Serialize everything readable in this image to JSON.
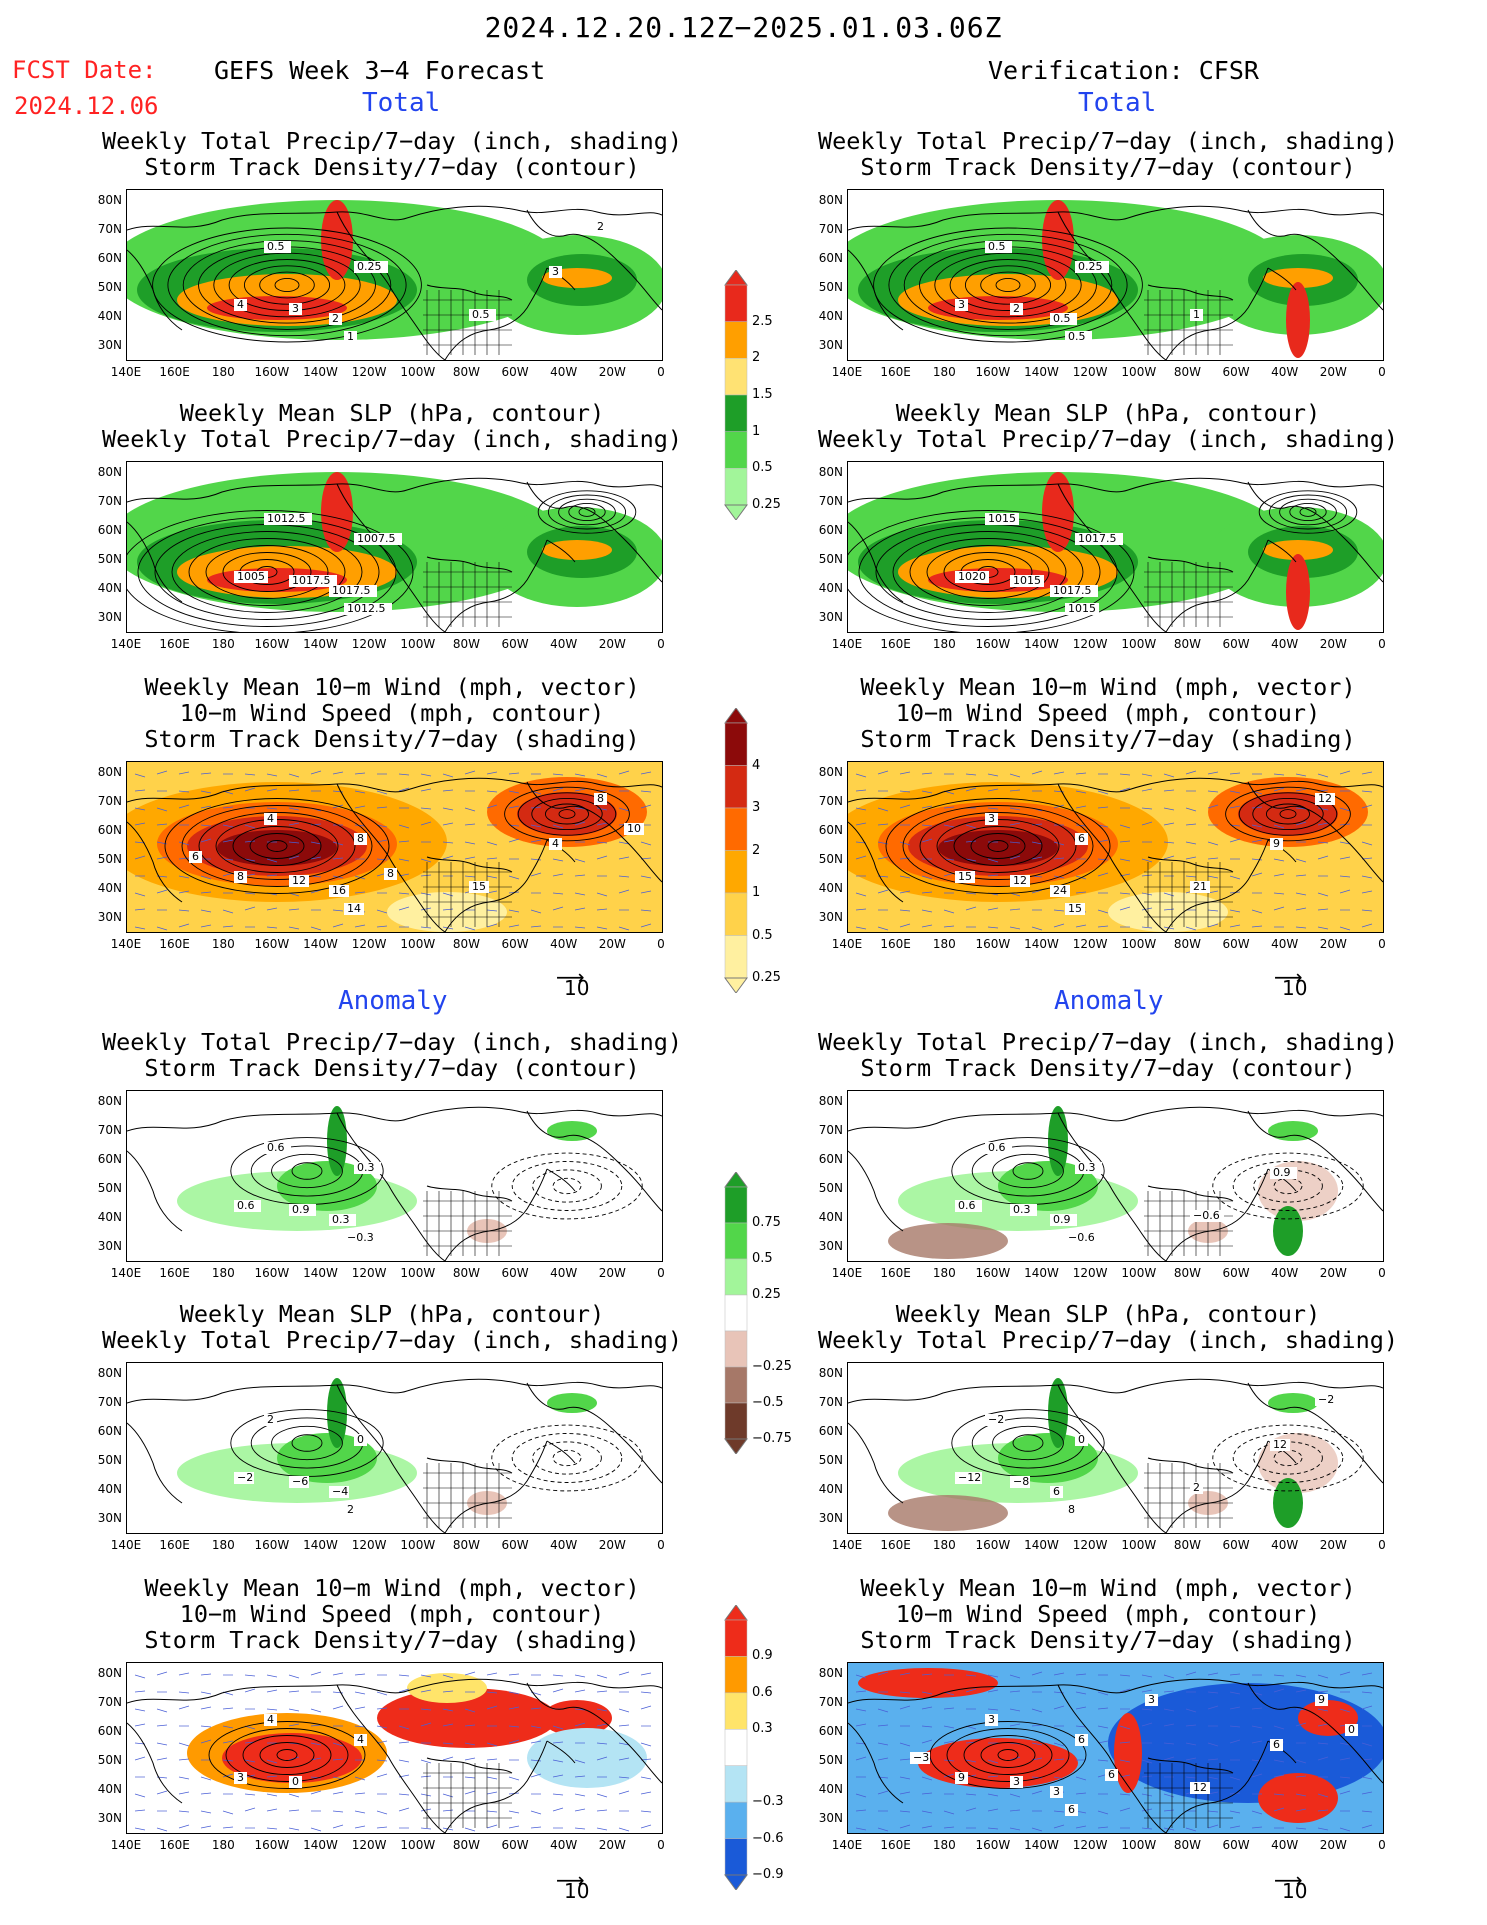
{
  "date_range": "2024.12.20.12Z−2025.01.03.06Z",
  "fcst_label": "FCST Date:",
  "fcst_date": "2024.12.06",
  "left_header": "GEFS Week 3−4 Forecast",
  "right_header": "Verification: CFSR",
  "section_total": "Total",
  "section_anomaly": "Anomaly",
  "titles": {
    "precip_storm": [
      "Weekly Total Precip/7−day (inch, shading)",
      "Storm Track Density/7−day (contour)"
    ],
    "slp_precip": [
      "Weekly Mean SLP (hPa, contour)",
      "Weekly Total Precip/7−day (inch, shading)"
    ],
    "wind_storm": [
      "Weekly Mean 10−m Wind (mph, vector)",
      "10−m Wind Speed (mph, contour)",
      "Storm Track Density/7−day (shading)"
    ]
  },
  "lat_labels": [
    "80N",
    "70N",
    "60N",
    "50N",
    "40N",
    "30N"
  ],
  "lon_labels": [
    "140E",
    "160E",
    "180",
    "160W",
    "140W",
    "120W",
    "100W",
    "80W",
    "60W",
    "40W",
    "20W",
    "0"
  ],
  "vector_ref": "10",
  "colorbars": {
    "total_precip": {
      "labels": [
        "2.5",
        "2",
        "1.5",
        "1",
        "0.5",
        "0.25"
      ],
      "colors": [
        "#e8291c",
        "#ff9f00",
        "#ffe273",
        "#1e9e28",
        "#52d64a",
        "#a2f59a"
      ]
    },
    "total_storm": {
      "labels": [
        "4",
        "3",
        "2",
        "1",
        "0.5",
        "0.25"
      ],
      "colors": [
        "#8c0a0a",
        "#d42a12",
        "#ff6a00",
        "#ffa800",
        "#ffd24a",
        "#fff0a0"
      ]
    },
    "anom_precip": {
      "labels": [
        "0.75",
        "0.5",
        "0.25",
        "−0.25",
        "−0.5",
        "−0.75"
      ],
      "colors": [
        "#1e9e28",
        "#52d64a",
        "#a2f59a",
        "#ffffff",
        "#e8c4b8",
        "#a67868",
        "#6e3a2a"
      ]
    },
    "anom_storm": {
      "labels": [
        "0.9",
        "0.6",
        "0.3",
        "−0.3",
        "−0.6",
        "−0.9"
      ],
      "colors": [
        "#ee2c1a",
        "#ff9a00",
        "#ffe46a",
        "#ffffff",
        "#b4e4f4",
        "#5ab0ee",
        "#1a5ad8"
      ]
    }
  },
  "panel_labels": {
    "l1": [
      "0.5",
      "0.25",
      "4",
      "3",
      "2",
      "1",
      "0.5",
      "3",
      "2"
    ],
    "r1": [
      "0.5",
      "0.25",
      "3",
      "2",
      "0.5",
      "0.5",
      "1"
    ],
    "l2": [
      "1012.5",
      "1007.5",
      "1005",
      "1017.5",
      "1017.5",
      "1012.5"
    ],
    "r2": [
      "1015",
      "1017.5",
      "1020",
      "1015",
      "1017.5",
      "1015"
    ],
    "l3": [
      "4",
      "8",
      "8",
      "12",
      "16",
      "14",
      "15",
      "4",
      "8",
      "8",
      "6",
      "10"
    ],
    "r3": [
      "3",
      "6",
      "15",
      "12",
      "24",
      "15",
      "21",
      "9",
      "12"
    ],
    "l4": [
      "0.6",
      "0.3",
      "0.6",
      "0.9",
      "0.3",
      "−0.3"
    ],
    "r4": [
      "0.6",
      "0.3",
      "0.6",
      "0.3",
      "0.9",
      "−0.6",
      "−0.6",
      "0.9"
    ],
    "l5": [
      "2",
      "0",
      "−2",
      "−6",
      "−4",
      "2"
    ],
    "r5": [
      "−2",
      "0",
      "−12",
      "−8",
      "6",
      "8",
      "2",
      "12",
      "−2"
    ],
    "l6": [
      "4",
      "4",
      "3",
      "0"
    ],
    "r6": [
      "3",
      "6",
      "9",
      "3",
      "3",
      "6",
      "12",
      "6",
      "9",
      "6",
      "−3",
      "0",
      "3"
    ]
  }
}
